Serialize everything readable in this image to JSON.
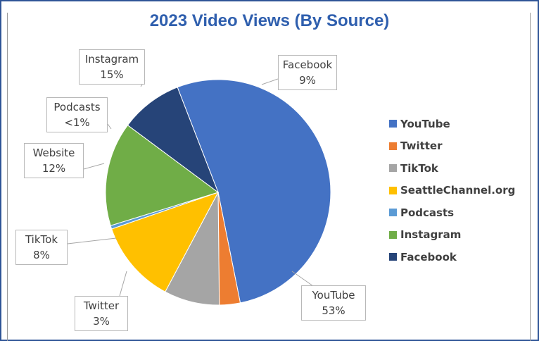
{
  "chart_data": {
    "type": "pie",
    "title": "2023 Video Views (By Source)",
    "slices": [
      {
        "label": "YouTube",
        "percent_label": "53%",
        "value": 53,
        "color": "#4472c4"
      },
      {
        "label": "Twitter",
        "percent_label": "3%",
        "value": 3,
        "color": "#ed7d31"
      },
      {
        "label": "TikTok",
        "percent_label": "8%",
        "value": 8,
        "color": "#a5a5a5"
      },
      {
        "label": "Website",
        "percent_label": "12%",
        "value": 12,
        "color": "#ffc000"
      },
      {
        "label": "Podcasts",
        "percent_label": "<1%",
        "value": 0.5,
        "color": "#5b9bd5"
      },
      {
        "label": "Instagram",
        "percent_label": "15%",
        "value": 15,
        "color": "#70ad47"
      },
      {
        "label": "Facebook",
        "percent_label": "9%",
        "value": 9,
        "color": "#264478"
      }
    ],
    "legend_position": "right",
    "legend": [
      {
        "label": "YouTube",
        "color": "#4472c4"
      },
      {
        "label": "Twitter",
        "color": "#ed7d31"
      },
      {
        "label": "TikTok",
        "color": "#a5a5a5"
      },
      {
        "label": "SeattleChannel.org",
        "color": "#ffc000"
      },
      {
        "label": "Podcasts",
        "color": "#5b9bd5"
      },
      {
        "label": "Instagram",
        "color": "#70ad47"
      },
      {
        "label": "Facebook",
        "color": "#264478"
      }
    ]
  }
}
